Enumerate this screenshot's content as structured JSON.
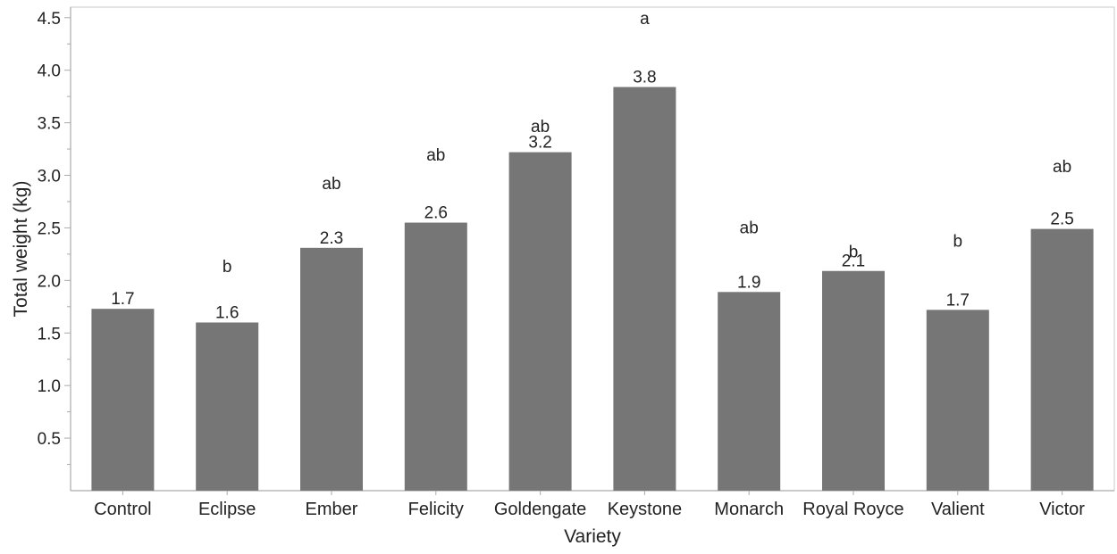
{
  "chart_data": {
    "type": "bar",
    "xlabel": "Variety",
    "ylabel": "Total weight (kg)",
    "ylim": [
      0,
      4.6
    ],
    "yticks": [
      "0.5",
      "1.0",
      "1.5",
      "2.0",
      "2.5",
      "3.0",
      "3.5",
      "4.0",
      "4.5"
    ],
    "categories": [
      "Control",
      "Eclipse",
      "Ember",
      "Felicity",
      "Goldengate",
      "Keystone",
      "Monarch",
      "Royal Royce",
      "Valient",
      "Victor"
    ],
    "values": [
      1.73,
      1.6,
      2.31,
      2.55,
      3.22,
      3.84,
      1.89,
      2.09,
      1.72,
      2.49
    ],
    "data_labels": [
      "1.7",
      "1.6",
      "2.3",
      "2.6",
      "3.2",
      "3.8",
      "1.9",
      "2.1",
      "1.7",
      "2.5"
    ],
    "significance_letters": [
      "",
      "b",
      "ab",
      "ab",
      "ab",
      "a",
      "ab",
      "b",
      "b",
      "ab"
    ],
    "significance_heights": [
      null,
      2.14,
      2.93,
      3.2,
      3.47,
      4.5,
      2.51,
      2.28,
      2.38,
      3.09
    ],
    "bar_color": "#767676",
    "axis_color": "#aaaaaa",
    "grid": false,
    "legend": "none"
  }
}
